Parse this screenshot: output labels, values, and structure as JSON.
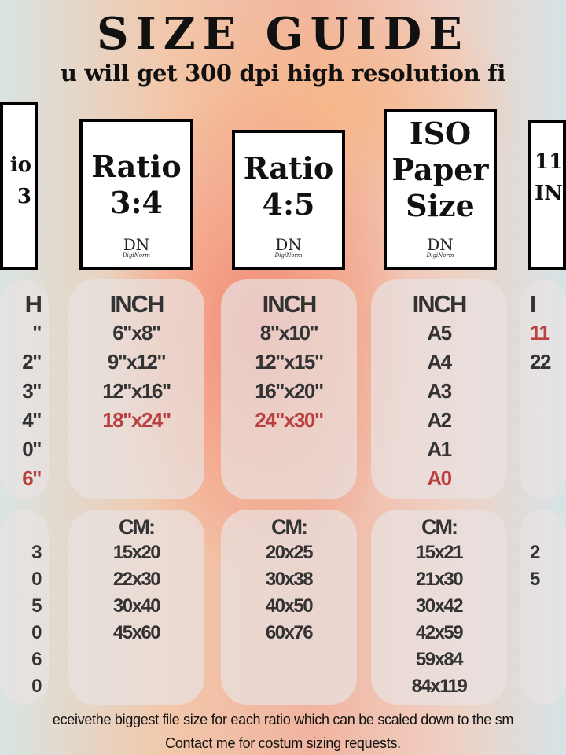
{
  "header": {
    "title": "SIZE GUIDE",
    "subtitle": "u will get 300 dpi high resolution fi"
  },
  "columns": [
    {
      "card": [
        "io",
        "3"
      ],
      "inch_header": "H",
      "inch": [
        "\"",
        "2\"",
        "3\"",
        "4\"",
        "0\"",
        "6\""
      ],
      "inch_highlight": 5,
      "cm_header": "",
      "cm": [
        "3",
        "0",
        "5",
        "0",
        "6",
        "0"
      ]
    },
    {
      "card": [
        "Ratio",
        "3:4"
      ],
      "inch_header": "INCH",
      "inch": [
        "6\"x8\"",
        "9\"x12\"",
        "12\"x16\"",
        "18\"x24\""
      ],
      "inch_highlight": 3,
      "cm_header": "CM:",
      "cm": [
        "15x20",
        "22x30",
        "30x40",
        "45x60"
      ]
    },
    {
      "card": [
        "Ratio",
        "4:5"
      ],
      "inch_header": "INCH",
      "inch": [
        "8\"x10\"",
        "12\"x15\"",
        "16\"x20\"",
        "24\"x30\""
      ],
      "inch_highlight": 3,
      "cm_header": "CM:",
      "cm": [
        "20x25",
        "30x38",
        "40x50",
        "60x76"
      ]
    },
    {
      "card": [
        "ISO",
        "Paper",
        "Size"
      ],
      "inch_header": "INCH",
      "inch": [
        "A5",
        "A4",
        "A3",
        "A2",
        "A1",
        "A0"
      ],
      "inch_highlight": 5,
      "cm_header": "CM:",
      "cm": [
        "15x21",
        "21x30",
        "30x42",
        "42x59",
        "59x84",
        "84x119"
      ]
    },
    {
      "card": [
        "11",
        "IN"
      ],
      "inch_header": "I",
      "inch": [
        "11",
        "22"
      ],
      "inch_highlight": 0,
      "cm_header": "",
      "cm": [
        "2",
        "5"
      ]
    }
  ],
  "logo": {
    "monogram": "DN",
    "name": "DigiNorm"
  },
  "footer": {
    "line1": "eceivethe biggest file size for each ratio which can be scaled down to the sm",
    "line2": "Contact me  for costum sizing requests."
  },
  "colors": {
    "highlight": "#b9403f",
    "text": "#333333"
  }
}
